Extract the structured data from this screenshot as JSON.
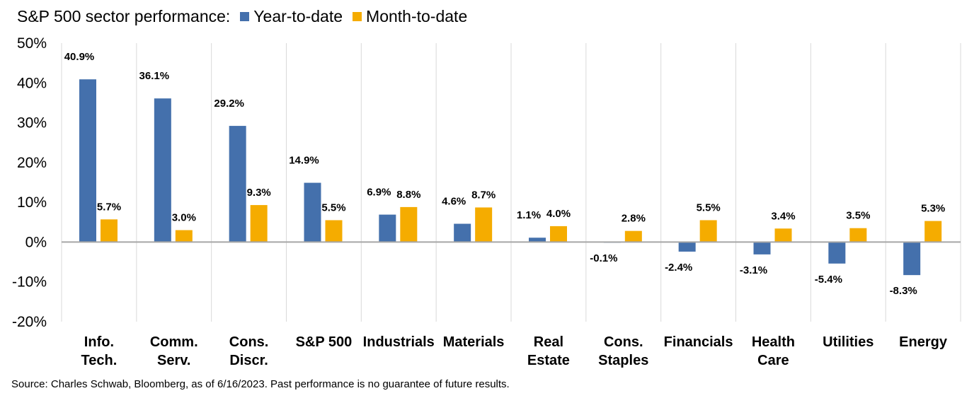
{
  "chart_data": {
    "type": "bar",
    "title": "S&P 500 sector performance:",
    "categories": [
      "Info.\nTech.",
      "Comm.\nServ.",
      "Cons.\nDiscr.",
      "S&P 500",
      "Industrials",
      "Materials",
      "Real\nEstate",
      "Cons.\nStaples",
      "Financials",
      "Health\nCare",
      "Utilities",
      "Energy"
    ],
    "series": [
      {
        "name": "Year-to-date",
        "color": "#4470ac",
        "values": [
          40.9,
          36.1,
          29.2,
          14.9,
          6.9,
          4.6,
          1.1,
          -0.1,
          -2.4,
          -3.1,
          -5.4,
          -8.3
        ],
        "labels": [
          "40.9%",
          "36.1%",
          "29.2%",
          "14.9%",
          "6.9%",
          "4.6%",
          "1.1%",
          "-0.1%",
          "-2.4%",
          "-3.1%",
          "-5.4%",
          "-8.3%"
        ]
      },
      {
        "name": "Month-to-date",
        "color": "#f5ac00",
        "values": [
          5.7,
          3.0,
          9.3,
          5.5,
          8.8,
          8.7,
          4.0,
          2.8,
          5.5,
          3.4,
          3.5,
          5.3
        ],
        "labels": [
          "5.7%",
          "3.0%",
          "9.3%",
          "5.5%",
          "8.8%",
          "8.7%",
          "4.0%",
          "2.8%",
          "5.5%",
          "3.4%",
          "3.5%",
          "5.3%"
        ]
      }
    ],
    "ylim": [
      -20,
      50
    ],
    "yticks": [
      50,
      40,
      30,
      20,
      10,
      0,
      -10,
      -20
    ],
    "ytick_labels": [
      "50%",
      "40%",
      "30%",
      "20%",
      "10%",
      "0%",
      "-10%",
      "-20%"
    ],
    "xlabel": "",
    "ylabel": "",
    "grid": "vertical category separators",
    "legend": "top, inline with title"
  },
  "source_note": "Source: Charles Schwab, Bloomberg, as of 6/16/2023. Past performance is no guarantee of future results."
}
